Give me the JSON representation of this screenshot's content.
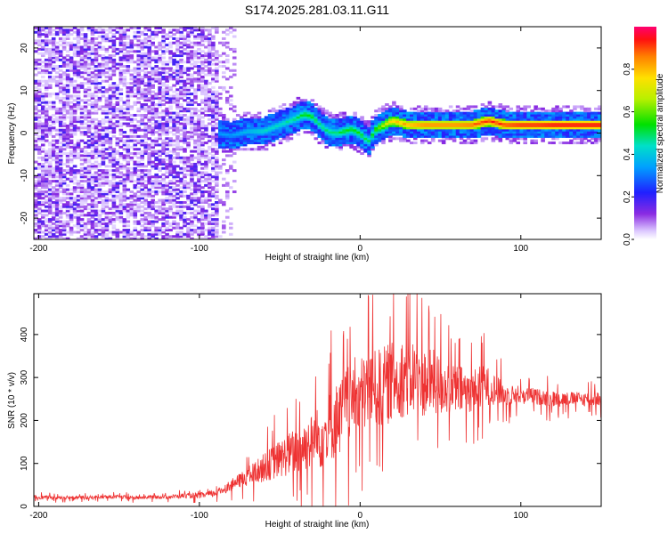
{
  "title": "S174.2025.281.03.11.G11",
  "colors": {
    "snr_line": "#ee3333",
    "background": "#ffffff",
    "axis": "#000000"
  },
  "colorbar": {
    "label": "Normalized spectral amplitude",
    "range": [
      0,
      1
    ],
    "ticks": [
      {
        "value": 0.0,
        "label": "0.0"
      },
      {
        "value": 0.2,
        "label": "0.2"
      },
      {
        "value": 0.4,
        "label": "0.4"
      },
      {
        "value": 0.6,
        "label": "0.6"
      },
      {
        "value": 0.8,
        "label": "0.8"
      }
    ],
    "colormap": "rainbow (white-violet at 0 through blue, cyan, green, yellow, orange to red/magenta at 1)"
  },
  "chart_data": [
    {
      "type": "heatmap",
      "xlabel": "Height of straight line (km)",
      "ylabel": "Frequency (Hz)",
      "xlim": [
        -203,
        150
      ],
      "ylim": [
        -25,
        25
      ],
      "xticks": [
        {
          "value": -200,
          "label": "-200"
        },
        {
          "value": -100,
          "label": "-100"
        },
        {
          "value": 0,
          "label": "0"
        },
        {
          "value": 100,
          "label": "100"
        }
      ],
      "yticks": [
        {
          "value": -20,
          "label": "-20"
        },
        {
          "value": -10,
          "label": "-10"
        },
        {
          "value": 0,
          "label": "0"
        },
        {
          "value": 10,
          "label": "10"
        },
        {
          "value": 20,
          "label": "20"
        }
      ],
      "noise_region_x": [
        -203,
        -88
      ],
      "signal_start_x": -88,
      "ridge": {
        "x": [
          -88,
          -80,
          -70,
          -60,
          -50,
          -40,
          -35,
          -30,
          -25,
          -20,
          -15,
          -10,
          -5,
          0,
          5,
          10,
          15,
          20,
          30,
          40,
          50,
          60,
          70,
          80,
          90,
          100,
          110,
          120,
          130,
          140,
          150
        ],
        "y": [
          0,
          -0.5,
          0.5,
          0.5,
          2,
          3.5,
          4.5,
          4,
          2,
          0.5,
          0,
          0.5,
          1,
          0,
          -2,
          1,
          2,
          3,
          2,
          2,
          2,
          2,
          2,
          3,
          2,
          2,
          2,
          2,
          2,
          2,
          2
        ],
        "amplitude": [
          0.35,
          0.35,
          0.4,
          0.45,
          0.45,
          0.5,
          0.55,
          0.55,
          0.5,
          0.5,
          0.5,
          0.55,
          0.55,
          0.55,
          0.5,
          0.6,
          0.7,
          0.8,
          0.85,
          0.9,
          0.9,
          0.9,
          0.92,
          0.95,
          0.95,
          0.98,
          0.98,
          1.0,
          1.0,
          1.0,
          1.0
        ]
      }
    },
    {
      "type": "line",
      "xlabel": "Height of straight line (km)",
      "ylabel": "SNR (10 * v/v)",
      "xlim": [
        -203,
        150
      ],
      "ylim": [
        0,
        495
      ],
      "xticks": [
        {
          "value": -200,
          "label": "-200"
        },
        {
          "value": -100,
          "label": "-100"
        },
        {
          "value": 0,
          "label": "0"
        },
        {
          "value": 100,
          "label": "100"
        }
      ],
      "yticks": [
        {
          "value": 0,
          "label": "0"
        },
        {
          "value": 100,
          "label": "100"
        },
        {
          "value": 200,
          "label": "200"
        },
        {
          "value": 300,
          "label": "300"
        },
        {
          "value": 400,
          "label": "400"
        }
      ],
      "series": [
        {
          "x": [
            -203,
            -190,
            -180,
            -170,
            -160,
            -150,
            -140,
            -130,
            -120,
            -110,
            -100,
            -90,
            -85,
            -80,
            -75,
            -70,
            -65,
            -60,
            -55,
            -50,
            -45,
            -40,
            -35,
            -30,
            -25,
            -20,
            -15,
            -10,
            -5,
            0,
            5,
            10,
            15,
            20,
            25,
            30,
            35,
            40,
            45,
            50,
            55,
            60,
            65,
            70,
            75,
            80,
            85,
            90,
            95,
            100,
            110,
            120,
            130,
            140,
            150
          ],
          "y": [
            22,
            20,
            22,
            20,
            22,
            22,
            20,
            22,
            22,
            25,
            25,
            30,
            40,
            50,
            60,
            70,
            80,
            90,
            100,
            110,
            120,
            130,
            140,
            150,
            160,
            180,
            200,
            220,
            250,
            260,
            270,
            270,
            280,
            290,
            300,
            300,
            300,
            290,
            290,
            280,
            280,
            270,
            270,
            270,
            280,
            280,
            270,
            260,
            260,
            260,
            255,
            250,
            250,
            250,
            250
          ],
          "spread": [
            8,
            8,
            8,
            8,
            8,
            8,
            8,
            8,
            8,
            10,
            12,
            15,
            20,
            25,
            30,
            40,
            50,
            60,
            70,
            80,
            90,
            100,
            110,
            120,
            140,
            150,
            160,
            170,
            170,
            170,
            170,
            170,
            170,
            170,
            170,
            170,
            160,
            150,
            140,
            130,
            120,
            110,
            100,
            90,
            90,
            80,
            60,
            50,
            40,
            40,
            35,
            35,
            30,
            30,
            30
          ]
        }
      ]
    }
  ]
}
